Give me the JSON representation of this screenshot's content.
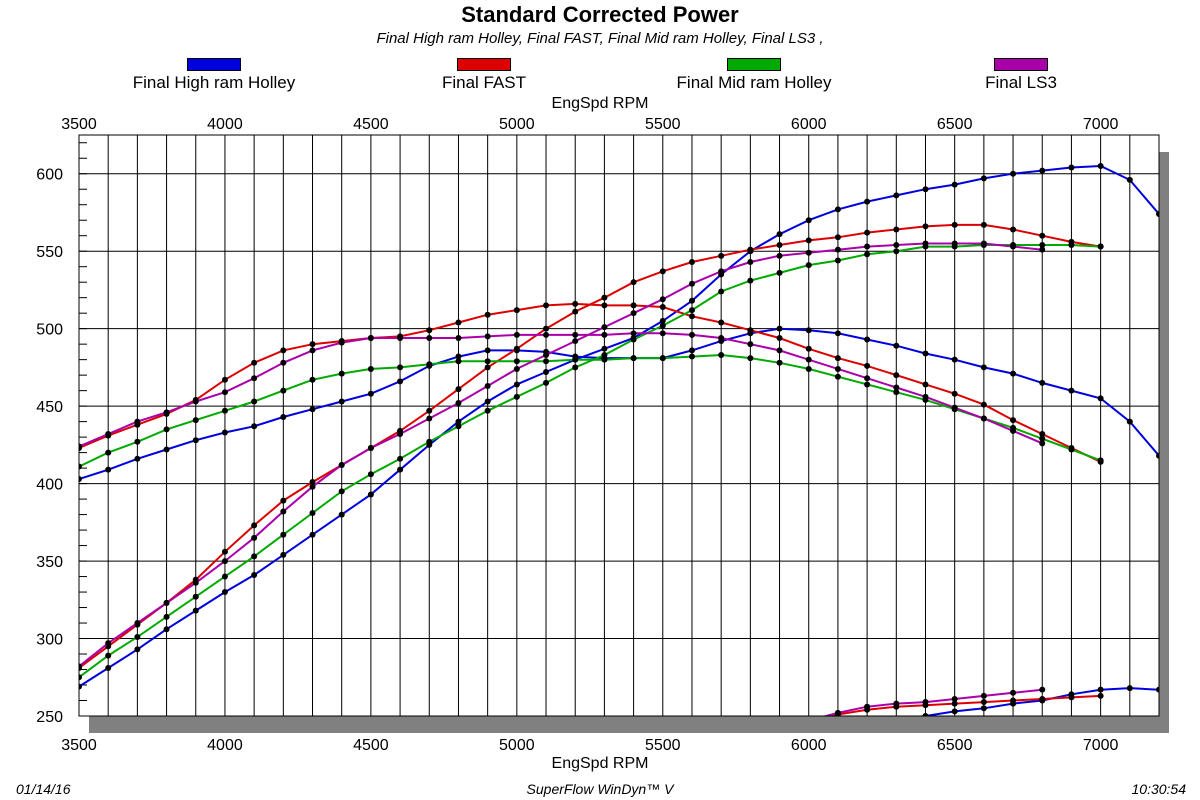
{
  "chart_data": {
    "type": "line",
    "title": "Standard Corrected Power",
    "subtitle": "Final High ram Holley, Final FAST, Final Mid ram Holley, Final LS3 ,",
    "xlabel": "EngSpd RPM",
    "xlim": [
      3500,
      7200
    ],
    "ylim": [
      250,
      625
    ],
    "x_ticks": [
      3500,
      4000,
      4500,
      5000,
      5500,
      6000,
      6500,
      7000
    ],
    "y_ticks": [
      250,
      300,
      350,
      400,
      450,
      500,
      550,
      600
    ],
    "grid": true,
    "legend_position": "top",
    "series": [
      {
        "name": "Final High ram Holley",
        "color": "#0000dd",
        "curves": [
          {
            "metric": "power",
            "x": [
              3500,
              3600,
              3700,
              3800,
              3900,
              4000,
              4100,
              4200,
              4300,
              4400,
              4500,
              4600,
              4700,
              4800,
              4900,
              5000,
              5100,
              5200,
              5300,
              5400,
              5500,
              5600,
              5700,
              5800,
              5900,
              6000,
              6100,
              6200,
              6300,
              6400,
              6500,
              6600,
              6700,
              6800,
              6900,
              7000,
              7100,
              7200
            ],
            "y": [
              269,
              281,
              293,
              306,
              318,
              330,
              341,
              354,
              367,
              380,
              393,
              409,
              425,
              440,
              453,
              464,
              472,
              480,
              487,
              494,
              505,
              518,
              535,
              550,
              561,
              570,
              577,
              582,
              586,
              590,
              593,
              597,
              600,
              602,
              604,
              605,
              596,
              574
            ]
          },
          {
            "metric": "torque",
            "x": [
              3500,
              3600,
              3700,
              3800,
              3900,
              4000,
              4100,
              4200,
              4300,
              4400,
              4500,
              4600,
              4700,
              4800,
              4900,
              5000,
              5100,
              5200,
              5300,
              5400,
              5500,
              5600,
              5700,
              5800,
              5900,
              6000,
              6100,
              6200,
              6300,
              6400,
              6500,
              6600,
              6700,
              6800,
              6900,
              7000,
              7100,
              7200
            ],
            "y": [
              403,
              409,
              416,
              422,
              428,
              433,
              437,
              443,
              448,
              453,
              458,
              466,
              476,
              482,
              486,
              486,
              485,
              482,
              481,
              481,
              481,
              486,
              492,
              497,
              500,
              499,
              497,
              493,
              489,
              484,
              480,
              475,
              471,
              465,
              460,
              455,
              440,
              418
            ]
          },
          {
            "metric": "low",
            "x": [
              6100,
              6200,
              6300,
              6400,
              6500,
              6600,
              6700,
              6800,
              6900,
              7000,
              7100,
              7200
            ],
            "y": [
              243,
              246,
              248,
              250,
              253,
              255,
              258,
              260,
              264,
              267,
              268,
              267
            ]
          }
        ]
      },
      {
        "name": "Final FAST",
        "color": "#dd0000",
        "curves": [
          {
            "metric": "power",
            "x": [
              3500,
              3600,
              3700,
              3800,
              3900,
              4000,
              4100,
              4200,
              4300,
              4400,
              4500,
              4600,
              4700,
              4800,
              4900,
              5000,
              5100,
              5200,
              5300,
              5400,
              5500,
              5600,
              5700,
              5800,
              5900,
              6000,
              6100,
              6200,
              6300,
              6400,
              6500,
              6600,
              6700,
              6800,
              6900,
              7000
            ],
            "y": [
              281,
              295,
              309,
              323,
              338,
              356,
              373,
              389,
              401,
              412,
              423,
              434,
              447,
              461,
              475,
              487,
              500,
              511,
              520,
              530,
              537,
              543,
              547,
              551,
              554,
              557,
              559,
              562,
              564,
              566,
              567,
              567,
              564,
              560,
              556,
              553
            ]
          },
          {
            "metric": "torque",
            "x": [
              3500,
              3600,
              3700,
              3800,
              3900,
              4000,
              4100,
              4200,
              4300,
              4400,
              4500,
              4600,
              4700,
              4800,
              4900,
              5000,
              5100,
              5200,
              5300,
              5400,
              5500,
              5600,
              5700,
              5800,
              5900,
              6000,
              6100,
              6200,
              6300,
              6400,
              6500,
              6600,
              6700,
              6800,
              6900,
              7000
            ],
            "y": [
              423,
              431,
              438,
              445,
              454,
              467,
              478,
              486,
              490,
              492,
              494,
              495,
              499,
              504,
              509,
              512,
              515,
              516,
              515,
              515,
              514,
              508,
              504,
              499,
              494,
              487,
              481,
              476,
              470,
              464,
              458,
              451,
              441,
              432,
              423,
              414
            ]
          },
          {
            "metric": "low",
            "x": [
              6000,
              6100,
              6200,
              6300,
              6400,
              6500,
              6600,
              6700,
              6800,
              6900,
              7000
            ],
            "y": [
              246,
              251,
              254,
              256,
              257,
              258,
              259,
              260,
              261,
              262,
              263
            ]
          }
        ]
      },
      {
        "name": "Final Mid ram Holley",
        "color": "#00aa00",
        "curves": [
          {
            "metric": "power",
            "x": [
              3500,
              3600,
              3700,
              3800,
              3900,
              4000,
              4100,
              4200,
              4300,
              4400,
              4500,
              4600,
              4700,
              4800,
              4900,
              5000,
              5100,
              5200,
              5300,
              5400,
              5500,
              5600,
              5700,
              5800,
              5900,
              6000,
              6100,
              6200,
              6300,
              6400,
              6500,
              6600,
              6700,
              6800,
              6900,
              7000
            ],
            "y": [
              275,
              289,
              301,
              314,
              327,
              340,
              353,
              367,
              381,
              395,
              406,
              416,
              427,
              437,
              447,
              456,
              465,
              475,
              483,
              493,
              502,
              512,
              524,
              531,
              536,
              541,
              544,
              548,
              550,
              553,
              553,
              554,
              554,
              554,
              554,
              553
            ]
          },
          {
            "metric": "torque",
            "x": [
              3500,
              3600,
              3700,
              3800,
              3900,
              4000,
              4100,
              4200,
              4300,
              4400,
              4500,
              4600,
              4700,
              4800,
              4900,
              5000,
              5100,
              5200,
              5300,
              5400,
              5500,
              5600,
              5700,
              5800,
              5900,
              6000,
              6100,
              6200,
              6300,
              6400,
              6500,
              6600,
              6700,
              6800,
              6900,
              7000
            ],
            "y": [
              411,
              420,
              427,
              435,
              441,
              447,
              453,
              460,
              467,
              471,
              474,
              475,
              477,
              479,
              479,
              479,
              479,
              480,
              480,
              481,
              481,
              482,
              483,
              481,
              478,
              474,
              469,
              464,
              459,
              454,
              448,
              442,
              436,
              429,
              422,
              415
            ]
          }
        ]
      },
      {
        "name": "Final LS3",
        "color": "#aa00aa",
        "curves": [
          {
            "metric": "power",
            "x": [
              3500,
              3600,
              3700,
              3800,
              3900,
              4000,
              4100,
              4200,
              4300,
              4400,
              4500,
              4600,
              4700,
              4800,
              4900,
              5000,
              5100,
              5200,
              5300,
              5400,
              5500,
              5600,
              5700,
              5800,
              5900,
              6000,
              6100,
              6200,
              6300,
              6400,
              6500,
              6600,
              6700,
              6800
            ],
            "y": [
              282,
              297,
              310,
              323,
              336,
              350,
              365,
              382,
              398,
              412,
              423,
              432,
              442,
              452,
              463,
              474,
              483,
              492,
              501,
              510,
              519,
              529,
              537,
              543,
              547,
              549,
              551,
              553,
              554,
              555,
              555,
              555,
              553,
              551
            ]
          },
          {
            "metric": "torque",
            "x": [
              3500,
              3600,
              3700,
              3800,
              3900,
              4000,
              4100,
              4200,
              4300,
              4400,
              4500,
              4600,
              4700,
              4800,
              4900,
              5000,
              5100,
              5200,
              5300,
              5400,
              5500,
              5600,
              5700,
              5800,
              5900,
              6000,
              6100,
              6200,
              6300,
              6400,
              6500,
              6600,
              6700,
              6800
            ],
            "y": [
              424,
              432,
              440,
              446,
              453,
              459,
              468,
              478,
              486,
              491,
              494,
              494,
              494,
              494,
              495,
              496,
              496,
              496,
              496,
              497,
              497,
              496,
              494,
              490,
              486,
              480,
              474,
              468,
              462,
              456,
              449,
              442,
              434,
              426
            ]
          },
          {
            "metric": "low",
            "x": [
              6000,
              6100,
              6200,
              6300,
              6400,
              6500,
              6600,
              6700,
              6800
            ],
            "y": [
              247,
              252,
              256,
              258,
              259,
              261,
              263,
              265,
              267
            ]
          }
        ]
      }
    ]
  },
  "footer": {
    "date": "01/14/16",
    "software": "SuperFlow WinDyn™  V",
    "time": "10:30:54"
  }
}
